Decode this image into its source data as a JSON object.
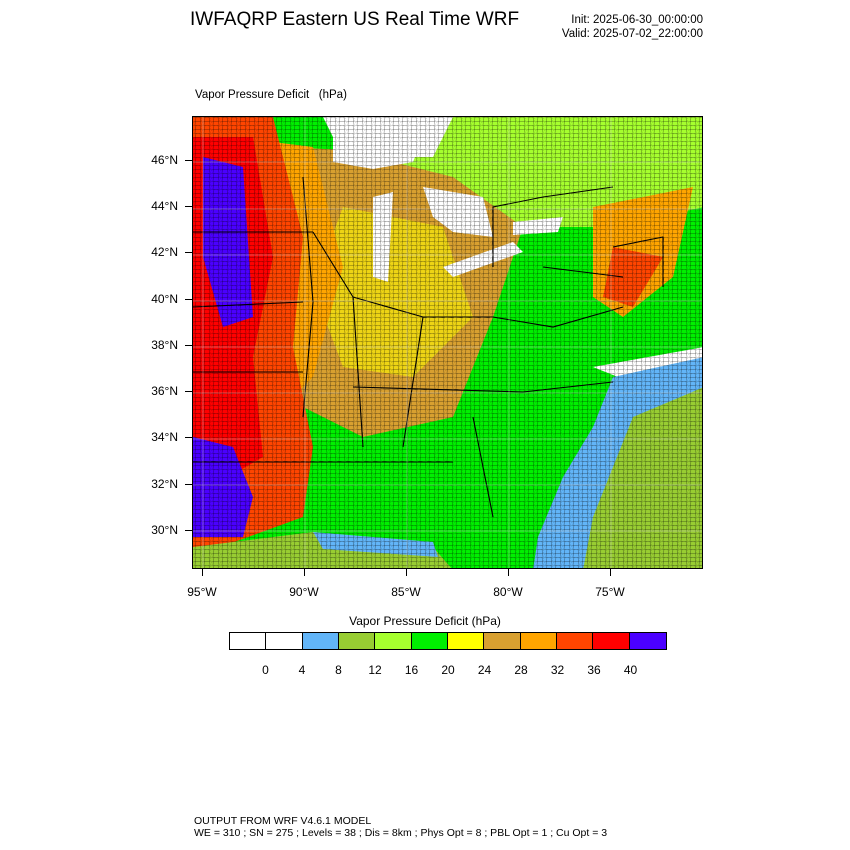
{
  "header": {
    "title": "IWFAQRP Eastern US Real Time WRF",
    "init": "Init: 2025-06-30_00:00:00",
    "valid": "Valid: 2025-07-02_22:00:00"
  },
  "map": {
    "label": "Vapor Pressure Deficit   (hPa)",
    "lat_labels": [
      "46°N",
      "44°N",
      "42°N",
      "40°N",
      "38°N",
      "36°N",
      "34°N",
      "32°N",
      "30°N"
    ],
    "lon_labels": [
      "95°W",
      "90°W",
      "85°W",
      "80°W",
      "75°W"
    ],
    "regions": {
      "no_data": "#ffffff",
      "water_gulf": "#98cd32",
      "atlantic_far": "#98cd32",
      "atlantic_near": "#62b5f8"
    }
  },
  "colorbar": {
    "title": "Vapor Pressure Deficit  (hPa)",
    "colors": [
      "#ffffff",
      "#ffffff",
      "#62b5f8",
      "#98cd32",
      "#a6ff2e",
      "#00f000",
      "#ffff00",
      "#d8a030",
      "#ffa500",
      "#ff4500",
      "#ff0000",
      "#4b00ff"
    ],
    "labels": [
      "0",
      "4",
      "8",
      "12",
      "16",
      "20",
      "24",
      "28",
      "32",
      "36",
      "40"
    ]
  },
  "footer": {
    "line1": "OUTPUT FROM WRF V4.6.1 MODEL",
    "line2": "WE = 310 ; SN = 275 ; Levels = 38 ; Dis = 8km ; Phys Opt = 8 ; PBL Opt = 1 ; Cu Opt = 3"
  }
}
